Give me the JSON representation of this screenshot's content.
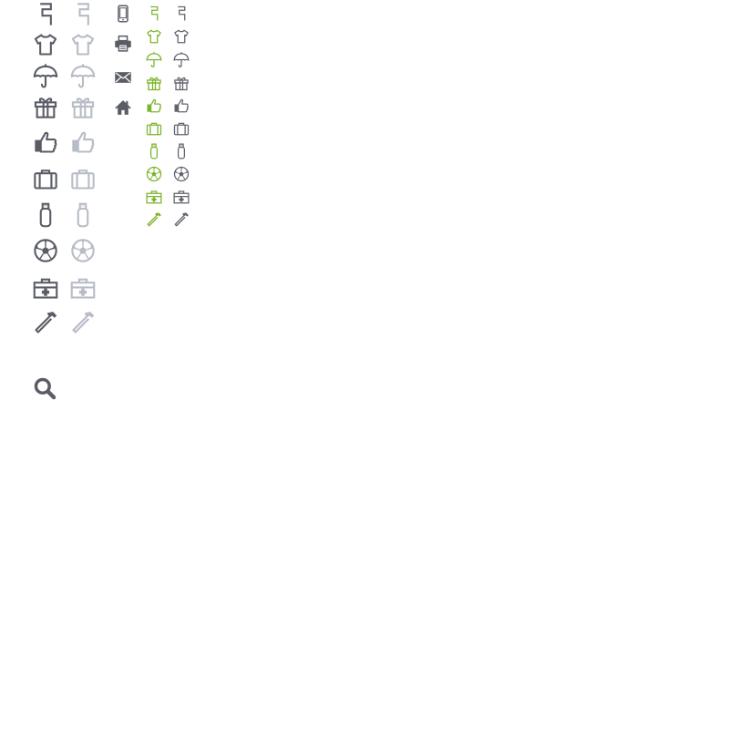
{
  "sprite": {
    "colors": {
      "dark": "#5a5d66",
      "light": "#b7bcc6",
      "green": "#7bb52b",
      "small_gray": "#62656d",
      "misc": "#5a5d66"
    },
    "groups": [
      {
        "set": "large",
        "tone": "dark",
        "icons": [
          "five",
          "shirt",
          "umbrella",
          "gift",
          "thumbs-up",
          "briefcase",
          "usb-drive",
          "soccer-ball",
          "first-aid-kit",
          "hammer"
        ]
      },
      {
        "set": "large",
        "tone": "light",
        "icons": [
          "five",
          "shirt",
          "umbrella",
          "gift",
          "thumbs-up",
          "briefcase",
          "usb-drive",
          "soccer-ball",
          "first-aid-kit",
          "hammer"
        ]
      },
      {
        "set": "misc",
        "tone": "misc",
        "icons": [
          "phone",
          "printer",
          "envelope",
          "house"
        ]
      },
      {
        "set": "small",
        "tone": "green",
        "icons": [
          "five",
          "shirt",
          "umbrella",
          "gift",
          "thumbs-up",
          "briefcase",
          "usb-drive",
          "soccer-ball",
          "first-aid-kit",
          "hammer"
        ]
      },
      {
        "set": "small",
        "tone": "small_gray",
        "icons": [
          "five",
          "shirt",
          "umbrella",
          "gift",
          "thumbs-up",
          "briefcase",
          "usb-drive",
          "soccer-ball",
          "first-aid-kit",
          "hammer"
        ]
      }
    ],
    "search": {
      "icon": "magnifier",
      "tone": "dark"
    }
  }
}
